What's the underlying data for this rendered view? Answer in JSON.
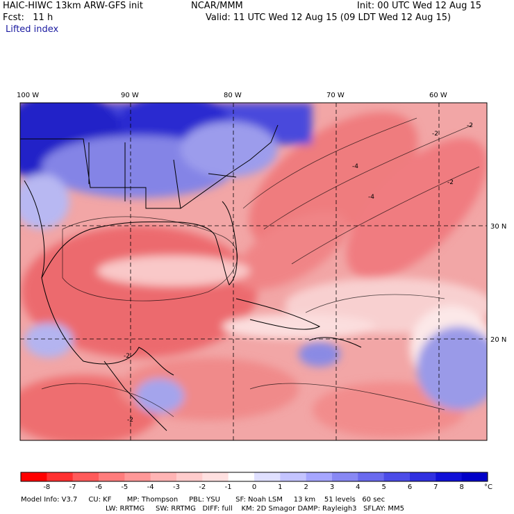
{
  "header": {
    "model_title": "HAIC-HIWC 13km ARW-GFS init",
    "org": "NCAR/MMM",
    "init": "Init: 00 UTC Wed 12 Aug 15",
    "fcst": "Fcst:   11 h",
    "valid": "Valid: 11 UTC Wed 12 Aug 15 (09 LDT Wed 12 Aug 15)",
    "field": "Lifted index"
  },
  "map": {
    "lon_labels": [
      "100 W",
      "90 W",
      "80 W",
      "70 W",
      "60 W"
    ],
    "lat_labels": [
      "30 N",
      "20 N"
    ],
    "contour_labels": [
      "-2",
      "-4",
      "-2",
      "-2",
      "-2",
      "-4",
      "-2"
    ],
    "colors": {
      "strong_negative": "#e8505a",
      "weak_negative": "#f6b6b6",
      "neutral": "#ffffff",
      "positive": "#8a8ae6",
      "strong_positive": "#1010d0"
    }
  },
  "colorbar": {
    "labels": [
      "-8",
      "-7",
      "-6",
      "-5",
      "-4",
      "-3",
      "-2",
      "-1",
      "0",
      "1",
      "2",
      "3",
      "4",
      "5",
      "6",
      "7",
      "8"
    ],
    "unit": "°C",
    "colors": [
      "#ff0000",
      "#ff3030",
      "#ff5a5a",
      "#ff7c7c",
      "#ff9898",
      "#ffb4b4",
      "#ffcccc",
      "#ffe0e0",
      "#ffffff",
      "#e0e0ff",
      "#c4c4ff",
      "#a6a6ff",
      "#8888f4",
      "#6a6aee",
      "#4c4ce8",
      "#3030e0",
      "#1010d8",
      "#0000c8"
    ]
  },
  "footer": {
    "line1": "Model Info: V3.7     CU: KF       MP: Thompson     PBL: YSU       SF: Noah LSM     13 km    51 levels   60 sec",
    "line2": "LW: RRTMG     SW: RRTMG   DIFF: full    KM: 2D Smagor DAMP: Rayleigh3   SFLAY: MM5"
  }
}
